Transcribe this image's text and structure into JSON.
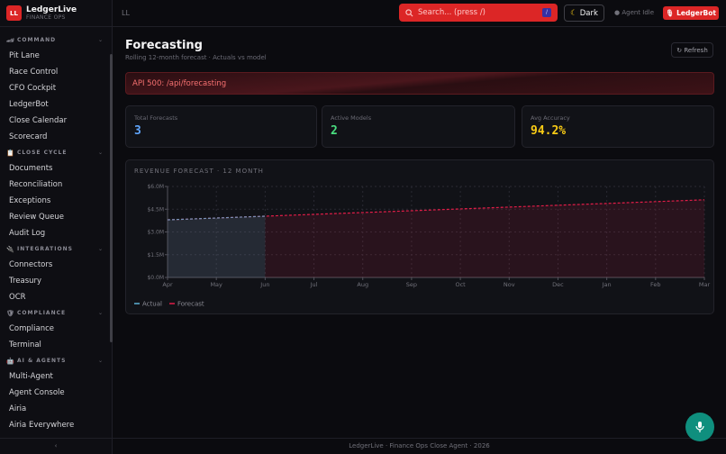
{
  "brand": {
    "logo": "LL",
    "name": "LedgerLive",
    "subtitle": "FINANCE OPS"
  },
  "sidebar": {
    "sections": [
      {
        "title": "COMMAND",
        "icon": "🏎",
        "items": [
          "Pit Lane",
          "Race Control",
          "CFO Cockpit",
          "LedgerBot",
          "Close Calendar",
          "Scorecard"
        ]
      },
      {
        "title": "CLOSE CYCLE",
        "icon": "📋",
        "items": [
          "Documents",
          "Reconciliation",
          "Exceptions",
          "Review Queue",
          "Audit Log"
        ]
      },
      {
        "title": "INTEGRATIONS",
        "icon": "🔌",
        "items": [
          "Connectors",
          "Treasury",
          "OCR"
        ]
      },
      {
        "title": "COMPLIANCE",
        "icon": "🛡",
        "items": [
          "Compliance",
          "Terminal"
        ]
      },
      {
        "title": "AI & AGENTS",
        "icon": "🤖",
        "items": [
          "Multi-Agent",
          "Agent Console",
          "Airia",
          "Airia Everywhere"
        ]
      }
    ],
    "collapse": "‹"
  },
  "header": {
    "breadcrumb": "LL",
    "search_placeholder": "Search... (press /)",
    "search_kbd": "/",
    "theme": "Dark",
    "agent_status": "● Agent Idle",
    "ledgerbot": "LedgerBot"
  },
  "page": {
    "title": "Forecasting",
    "subtitle": "Rolling 12-month forecast · Actuals vs model",
    "refresh": "↻ Refresh",
    "error": "API 500: /api/forecasting"
  },
  "kpis": [
    {
      "label": "Total Forecasts",
      "value": "3",
      "color": "#60a5fa"
    },
    {
      "label": "Active Models",
      "value": "2",
      "color": "#4ade80"
    },
    {
      "label": "Avg Accuracy",
      "value": "94.2%",
      "color": "#facc15"
    }
  ],
  "chart_data": {
    "type": "line",
    "title": "REVENUE FORECAST · 12 MONTH",
    "categories": [
      "Apr",
      "May",
      "Jun",
      "Jul",
      "Aug",
      "Sep",
      "Oct",
      "Nov",
      "Dec",
      "Jan",
      "Feb",
      "Mar"
    ],
    "yticks": [
      "$0.0M",
      "$1.5M",
      "$3.0M",
      "$4.5M",
      "$6.0M"
    ],
    "ylim": [
      0,
      6
    ],
    "grid": true,
    "legend": "bottom-left",
    "series": [
      {
        "name": "Actual",
        "color": "#5eb3d6",
        "values": [
          3.8,
          3.92,
          4.04,
          null,
          null,
          null,
          null,
          null,
          null,
          null,
          null,
          null
        ]
      },
      {
        "name": "Forecast",
        "color": "#e11d48",
        "values": [
          3.8,
          3.92,
          4.04,
          4.16,
          4.28,
          4.4,
          4.52,
          4.64,
          4.76,
          4.88,
          5.0,
          5.12
        ]
      }
    ]
  },
  "footer": "LedgerLive · Finance Ops Close Agent · 2026"
}
